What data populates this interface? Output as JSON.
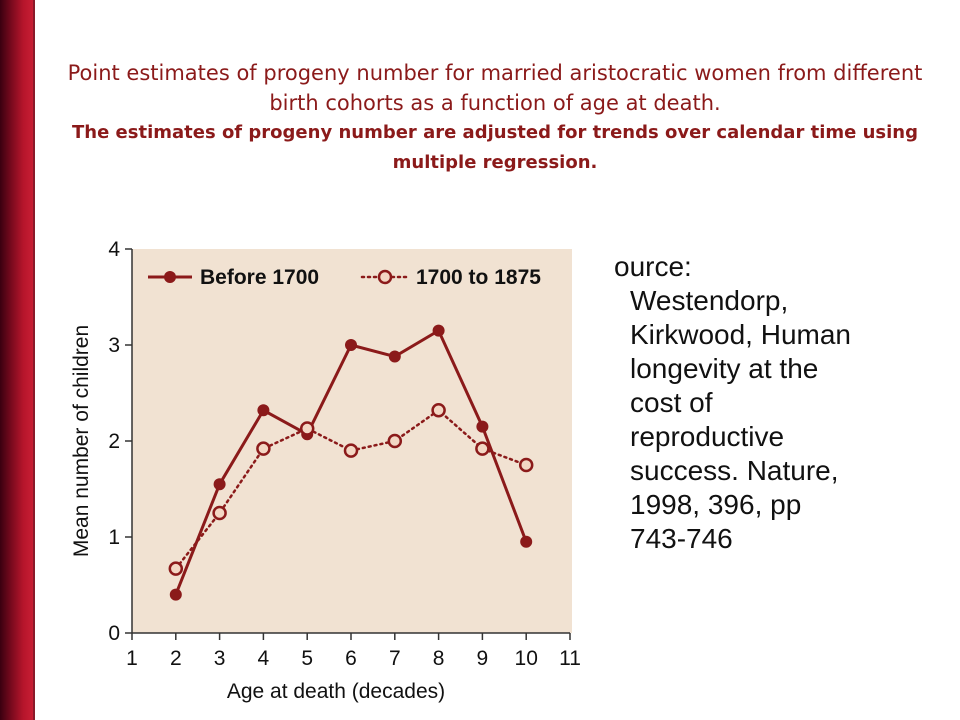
{
  "header": {
    "title": "Point estimates of progeny number for married aristocratic women from different birth cohorts as a function of age at death.",
    "subtitle": "The estimates of progeny number are adjusted for trends over calendar time using multiple regression."
  },
  "source": {
    "lines": [
      "ource:",
      "Westendorp,",
      "Kirkwood, Human",
      "longevity at the",
      "cost of",
      "reproductive",
      "success.  Nature,",
      "1998, 396, pp",
      "743-746"
    ]
  },
  "colors": {
    "accent": "#8b1a1a",
    "series_main": "#8b1a1a",
    "plot_background": "#f1e2d2",
    "left_bar": "#b5152b"
  },
  "chart_data": {
    "type": "line",
    "xlabel": "Age at death (decades)",
    "ylabel": "Mean number of children",
    "xlim": [
      1,
      11
    ],
    "ylim": [
      0,
      4
    ],
    "x_ticks": [
      1,
      2,
      3,
      4,
      5,
      6,
      7,
      8,
      9,
      10,
      11
    ],
    "y_ticks": [
      0,
      1,
      2,
      3,
      4
    ],
    "grid": false,
    "legend_position": "top",
    "series": [
      {
        "name": "Before 1700",
        "style": "solid",
        "marker": "filled-circle",
        "x": [
          2,
          3,
          4,
          5,
          6,
          7,
          8,
          9,
          10
        ],
        "y": [
          0.4,
          1.55,
          2.32,
          2.07,
          3.0,
          2.88,
          3.15,
          2.15,
          0.95
        ]
      },
      {
        "name": "1700 to 1875",
        "style": "dotted",
        "marker": "open-circle",
        "x": [
          2,
          3,
          4,
          5,
          6,
          7,
          8,
          9,
          10
        ],
        "y": [
          0.67,
          1.25,
          1.92,
          2.13,
          1.9,
          2.0,
          2.32,
          1.92,
          1.75
        ]
      }
    ]
  }
}
